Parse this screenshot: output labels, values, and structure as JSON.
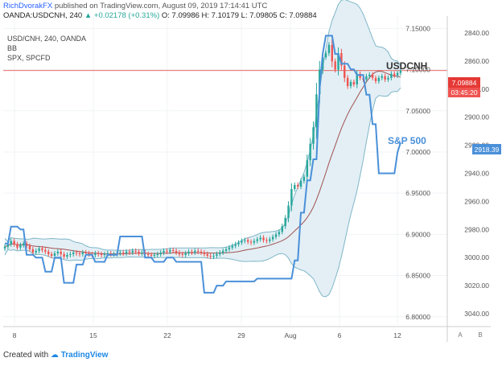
{
  "header": {
    "author": "RichDvorakFX",
    "published": "published on TradingView.com, August 09, 2019 17:14:41 UTC",
    "symbol": "OANDA:USDCNH, 240",
    "change": "+0.02178 (+0.31%)",
    "ohlc": {
      "o": "O: 7.09986",
      "h": "H: 7.10179",
      "l": "L: 7.09805",
      "c": "C: 7.09884"
    }
  },
  "legend": {
    "title": "USD/CNH, 240, OANDA",
    "indicator": "BB",
    "overlay": "SPX, SPCFD"
  },
  "footer": {
    "created": "Created with",
    "brand": "TradingView"
  },
  "colors": {
    "usdcnh_up": "#26a69a",
    "usdcnh_down": "#ef5350",
    "spx": "#4a90d9",
    "bb_fill": "#e3eff5",
    "bb_band": "#7fb6c7",
    "bb_basis": "#a05050",
    "price_line": "#e53935"
  },
  "chart_data": {
    "type": "line",
    "x_ticks": [
      "8",
      "15",
      "22",
      "29",
      "Aug",
      "6",
      "12"
    ],
    "y_left_ticks": [
      "7.15000",
      "7.10000",
      "7.05000",
      "7.00000",
      "6.95000",
      "6.90000",
      "6.85000",
      "6.80000"
    ],
    "y_left_range": [
      6.79,
      7.165
    ],
    "y_right_ticks": [
      "2840.00",
      "2860.00",
      "2880.00",
      "2900.00",
      "2920.00",
      "2940.00",
      "2960.00",
      "2980.00",
      "3000.00",
      "3020.00",
      "3040.00"
    ],
    "y_right_range": [
      3048,
      2828
    ],
    "left_axis_label": "A",
    "right_axis_label": "B",
    "series": [
      {
        "name": "USDCNH",
        "axis": "left",
        "style": "candles",
        "last_value": "7.09884",
        "countdown": "03:45:20",
        "values": [
          6.885,
          6.888,
          6.892,
          6.888,
          6.884,
          6.887,
          6.889,
          6.886,
          6.882,
          6.878,
          6.88,
          6.883,
          6.881,
          6.879,
          6.876,
          6.874,
          6.877,
          6.879,
          6.876,
          6.873,
          6.875,
          6.876,
          6.878,
          6.877,
          6.876,
          6.878,
          6.877,
          6.876,
          6.875,
          6.877,
          6.876,
          6.875,
          6.876,
          6.877,
          6.876,
          6.876,
          6.877,
          6.878,
          6.877,
          6.879,
          6.878,
          6.88,
          6.879,
          6.877,
          6.878,
          6.876,
          6.875,
          6.874,
          6.875,
          6.876,
          6.878,
          6.88,
          6.879,
          6.881,
          6.88,
          6.878,
          6.876,
          6.875,
          6.877,
          6.879,
          6.878,
          6.88,
          6.879,
          6.878,
          6.876,
          6.874,
          6.873,
          6.874,
          6.876,
          6.878,
          6.88,
          6.882,
          6.884,
          6.886,
          6.888,
          6.89,
          6.892,
          6.893,
          6.891,
          6.89,
          6.892,
          6.894,
          6.896,
          6.893,
          6.892,
          6.894,
          6.897,
          6.9,
          6.903,
          6.91,
          6.92,
          6.935,
          6.955,
          6.96,
          6.958,
          6.965,
          6.97,
          6.99,
          7.01,
          7.03,
          7.07,
          7.1,
          7.115,
          7.12,
          7.13,
          7.11,
          7.1,
          7.12,
          7.105,
          7.09,
          7.08,
          7.085,
          7.082,
          7.095,
          7.09,
          7.088,
          7.092,
          7.094,
          7.09,
          7.086,
          7.09,
          7.092,
          7.088,
          7.09,
          7.095,
          7.093,
          7.096,
          7.099
        ]
      },
      {
        "name": "S&P 500",
        "axis": "right",
        "style": "line",
        "last_value": "2918.39",
        "values": [
          2990,
          2990,
          2978,
          2978,
          2978,
          2980,
          2980,
          2998,
          2998,
          2998,
          3000,
          3000,
          3000,
          3010,
          3010,
          3010,
          3000,
          3000,
          3000,
          3018,
          3018,
          3018,
          3018,
          3005,
          3005,
          3005,
          2998,
          2998,
          2998,
          3003,
          3003,
          3003,
          3003,
          2998,
          2998,
          2998,
          2998,
          2985,
          2985,
          2985,
          2985,
          2985,
          2985,
          2985,
          2985,
          3000,
          3000,
          3000,
          3003,
          3003,
          3003,
          3003,
          3000,
          3000,
          3000,
          3003,
          3003,
          3003,
          3003,
          3003,
          3003,
          3003,
          3003,
          3003,
          3025,
          3025,
          3025,
          3025,
          3020,
          3020,
          3020,
          3017,
          3017,
          3017,
          3017,
          3017,
          3017,
          3017,
          3017,
          3017,
          3017,
          3015,
          3015,
          3015,
          3015,
          3015,
          3015,
          3015,
          3015,
          3015,
          3015,
          3015,
          3015,
          3002,
          3002,
          2968,
          2968,
          2945,
          2945,
          2930,
          2930,
          2880,
          2855,
          2842,
          2842,
          2842,
          2855,
          2855,
          2862,
          2862,
          2862,
          2866,
          2866,
          2870,
          2870,
          2870,
          2884,
          2884,
          2905,
          2905,
          2940,
          2940,
          2940,
          2940,
          2940,
          2940,
          2925,
          2918
        ]
      }
    ],
    "annotations": [
      "USDCNH",
      "S&P 500"
    ],
    "grid": true
  }
}
